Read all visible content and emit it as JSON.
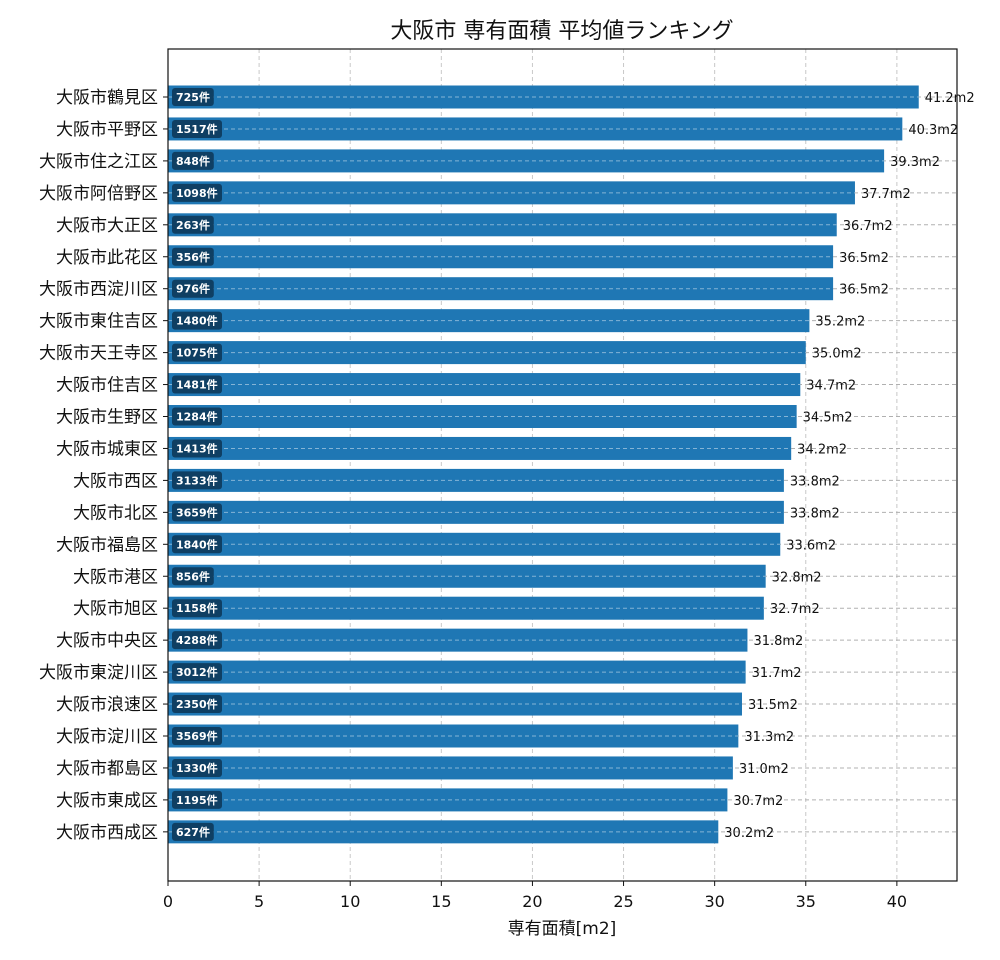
{
  "chart_data": {
    "type": "bar",
    "orientation": "horizontal",
    "title": "大阪市 専有面積 平均値ランキング",
    "xlabel": "専有面積[m2]",
    "ylabel": "",
    "xlim": [
      0,
      43.3
    ],
    "xticks": [
      0,
      5,
      10,
      15,
      20,
      25,
      30,
      35,
      40
    ],
    "grid": true,
    "bar_color": "#1f77b4",
    "badge_color": "#0f3f63",
    "categories": [
      "大阪市鶴見区",
      "大阪市平野区",
      "大阪市住之江区",
      "大阪市阿倍野区",
      "大阪市大正区",
      "大阪市此花区",
      "大阪市西淀川区",
      "大阪市東住吉区",
      "大阪市天王寺区",
      "大阪市住吉区",
      "大阪市生野区",
      "大阪市城東区",
      "大阪市西区",
      "大阪市北区",
      "大阪市福島区",
      "大阪市港区",
      "大阪市旭区",
      "大阪市中央区",
      "大阪市東淀川区",
      "大阪市浪速区",
      "大阪市淀川区",
      "大阪市都島区",
      "大阪市東成区",
      "大阪市西成区"
    ],
    "values": [
      41.2,
      40.3,
      39.3,
      37.7,
      36.7,
      36.5,
      36.5,
      35.2,
      35.0,
      34.7,
      34.5,
      34.2,
      33.8,
      33.8,
      33.6,
      32.8,
      32.7,
      31.8,
      31.7,
      31.5,
      31.3,
      31.0,
      30.7,
      30.2
    ],
    "value_labels": [
      "41.2m2",
      "40.3m2",
      "39.3m2",
      "37.7m2",
      "36.7m2",
      "36.5m2",
      "36.5m2",
      "35.2m2",
      "35.0m2",
      "34.7m2",
      "34.5m2",
      "34.2m2",
      "33.8m2",
      "33.8m2",
      "33.6m2",
      "32.8m2",
      "32.7m2",
      "31.8m2",
      "31.7m2",
      "31.5m2",
      "31.3m2",
      "31.0m2",
      "30.7m2",
      "30.2m2"
    ],
    "count_labels": [
      "725件",
      "1517件",
      "848件",
      "1098件",
      "263件",
      "356件",
      "976件",
      "1480件",
      "1075件",
      "1481件",
      "1284件",
      "1413件",
      "3133件",
      "3659件",
      "1840件",
      "856件",
      "1158件",
      "4288件",
      "3012件",
      "2350件",
      "3569件",
      "1330件",
      "1195件",
      "627件"
    ]
  }
}
